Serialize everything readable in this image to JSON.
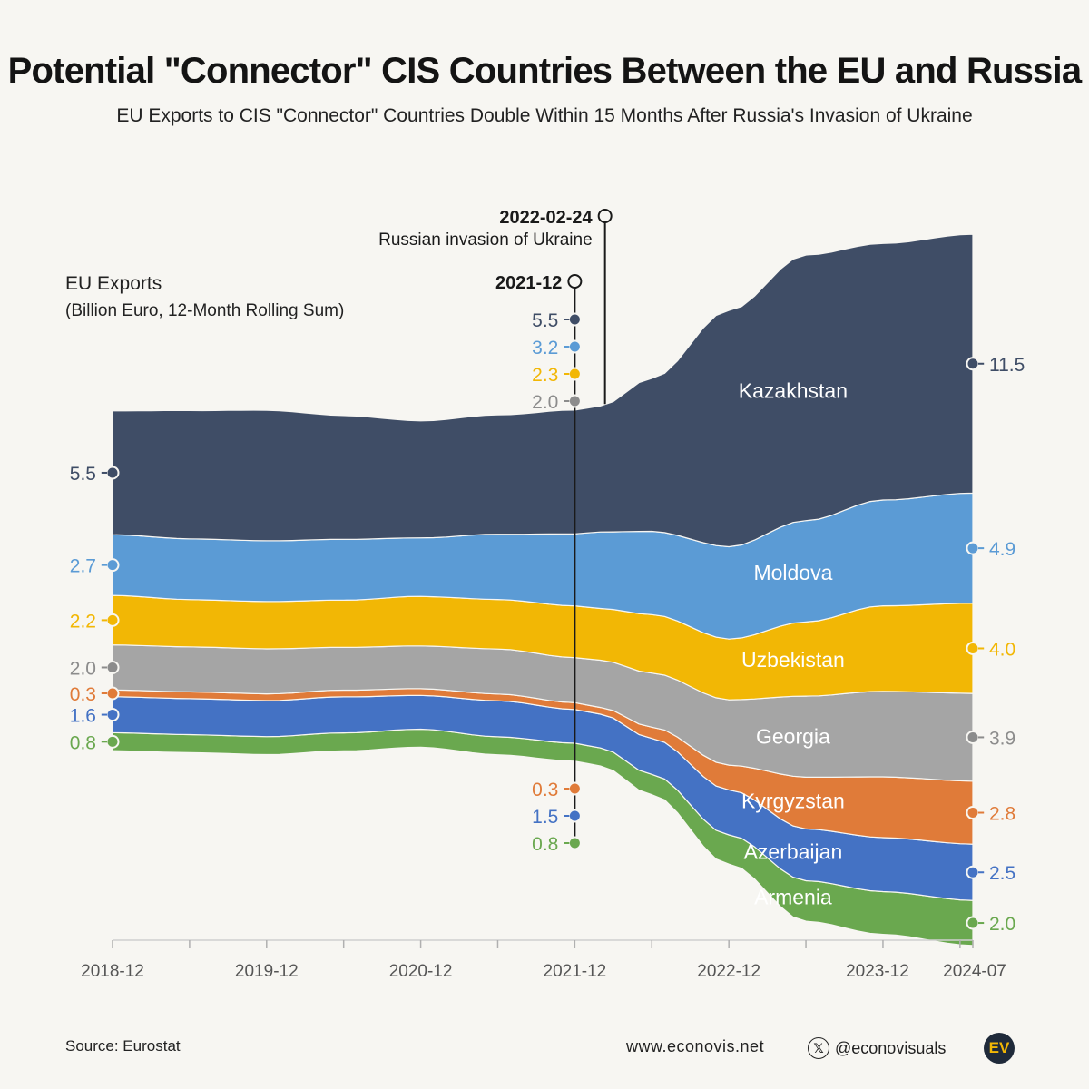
{
  "header": {
    "title": "Potential \"Connector\" CIS Countries Between the EU and Russia",
    "subtitle": "EU Exports to CIS \"Connector\" Countries Double Within 15 Months After Russia's Invasion of Ukraine"
  },
  "axis": {
    "ylabel_line1": "EU Exports",
    "ylabel_line2": "(Billion Euro, 12-Month Rolling Sum)"
  },
  "footer": {
    "source": "Source: Eurostat",
    "website": "www.econovis.net",
    "handle": "@econovisuals",
    "logo_text": "EV",
    "x_icon": "x-logo-icon"
  },
  "colors": {
    "background": "#f7f6f2",
    "kazakhstan": "#3f4d66",
    "moldova": "#5b9bd5",
    "uzbekistan": "#f2b705",
    "georgia": "#a5a5a5",
    "kyrgyzstan": "#e07b39",
    "azerbaijan": "#4472c4",
    "armenia": "#6aa84f"
  },
  "chart_data": {
    "type": "area",
    "stacking": "centered stream",
    "x_ticks": [
      "2018-12",
      "2019-12",
      "2020-12",
      "2021-12",
      "2022-12",
      "2023-12",
      "2024-07"
    ],
    "x": [
      "2018-12",
      "2019-06",
      "2019-12",
      "2020-06",
      "2020-12",
      "2021-06",
      "2021-12",
      "2022-02",
      "2022-06",
      "2022-12",
      "2023-06",
      "2023-12",
      "2024-07"
    ],
    "ylabel": "EU Exports (Billion Euro, 12-Month Rolling Sum)",
    "grid": false,
    "series": [
      {
        "name": "Armenia",
        "color": "#6aa84f",
        "values": [
          0.8,
          0.8,
          0.8,
          0.8,
          0.8,
          0.8,
          0.8,
          0.8,
          0.9,
          1.3,
          1.8,
          1.9,
          2.0
        ],
        "start_label": "0.8",
        "mid_label": "0.8",
        "end_label": "2.0"
      },
      {
        "name": "Azerbaijan",
        "color": "#4472c4",
        "values": [
          1.6,
          1.6,
          1.6,
          1.6,
          1.5,
          1.6,
          1.5,
          1.5,
          1.6,
          2.0,
          2.3,
          2.4,
          2.5
        ],
        "start_label": "1.6",
        "mid_label": "1.5",
        "end_label": "2.5"
      },
      {
        "name": "Kyrgyzstan",
        "color": "#e07b39",
        "values": [
          0.3,
          0.3,
          0.3,
          0.3,
          0.3,
          0.3,
          0.3,
          0.3,
          0.5,
          1.1,
          2.3,
          2.7,
          2.8
        ],
        "start_label": "0.3",
        "mid_label": "0.3",
        "end_label": "2.8"
      },
      {
        "name": "Georgia",
        "color": "#a5a5a5",
        "values": [
          2.0,
          2.0,
          2.0,
          1.9,
          1.9,
          2.0,
          2.0,
          2.1,
          2.4,
          2.9,
          3.6,
          3.8,
          3.9
        ],
        "start_label": "2.0",
        "mid_label": "2.0",
        "end_label": "3.9"
      },
      {
        "name": "Uzbekistan",
        "color": "#f2b705",
        "values": [
          2.2,
          2.1,
          2.1,
          2.1,
          2.2,
          2.2,
          2.3,
          2.3,
          2.6,
          2.7,
          3.3,
          3.8,
          4.0
        ],
        "start_label": "2.2",
        "mid_label": "2.3",
        "end_label": "4.0"
      },
      {
        "name": "Moldova",
        "color": "#5b9bd5",
        "values": [
          2.7,
          2.7,
          2.7,
          2.7,
          2.6,
          2.9,
          3.2,
          3.4,
          3.7,
          4.1,
          4.5,
          4.7,
          4.9
        ],
        "start_label": "2.7",
        "mid_label": "3.2",
        "end_label": "4.9"
      },
      {
        "name": "Kazakhstan",
        "color": "#3f4d66",
        "values": [
          5.5,
          5.7,
          5.8,
          5.5,
          5.2,
          5.3,
          5.5,
          5.6,
          6.8,
          10.5,
          11.8,
          11.4,
          11.5
        ],
        "start_label": "5.5",
        "mid_label": "5.5",
        "end_label": "11.5"
      }
    ],
    "annotations": [
      {
        "x": "2022-02",
        "label": "2022-02-24",
        "text": "Russian invasion of Ukraine"
      },
      {
        "x": "2021-12",
        "label": "2021-12",
        "text": ""
      }
    ]
  }
}
